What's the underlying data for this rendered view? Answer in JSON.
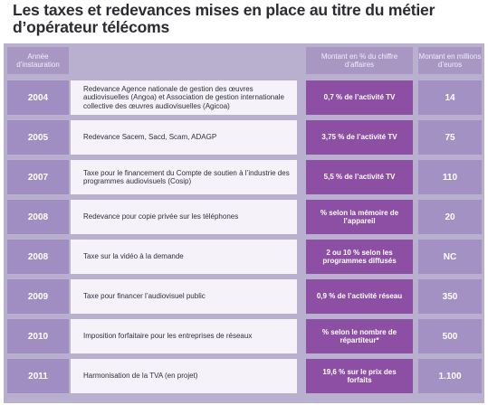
{
  "title": "Les taxes et redevances mises en place au titre du métier d’opérateur télécoms",
  "headers": {
    "year": "Année d’instauration",
    "percent": "Montant en % du chiffre d’affaires",
    "amount": "Montant en millions d’euros"
  },
  "rows": [
    {
      "year": "2004",
      "label": "Redevance Agence nationale de gestion des œuvres audiovisuelles (Angoa) et Association de gestion internationale collective des œuvres audiovisuelles (Agicoa)",
      "percent": "0,7 % de l’activité TV",
      "amount": "14"
    },
    {
      "year": "2005",
      "label": "Redevance Sacem, Sacd, Scam, ADAGP",
      "percent": "3,75 % de l’activité TV",
      "amount": "75"
    },
    {
      "year": "2007",
      "label": "Taxe pour le financement du Compte de soutien à l’industrie des programmes audiovisuels (Cosip)",
      "percent": "5,5 % de l’activité TV",
      "amount": "110"
    },
    {
      "year": "2008",
      "label": "Redevance pour copie privée sur les téléphones",
      "percent": "% selon la mémoire de l’appareil",
      "amount": "20"
    },
    {
      "year": "2008",
      "label": "Taxe sur la vidéo à la demande",
      "percent": "2 ou 10 % selon les programmes diffusés",
      "amount": "NC"
    },
    {
      "year": "2009",
      "label": "Taxe pour financer l’audiovisuel public",
      "percent": "0,9 % de l’activité réseau",
      "amount": "350"
    },
    {
      "year": "2010",
      "label": "Imposition forfaitaire pour les entreprises de réseaux",
      "percent": "% selon le nombre de répartiteur*",
      "amount": "500"
    },
    {
      "year": "2011",
      "label": "Harmonisation de la TVA (en projet)",
      "percent": "19,6 % sur le prix des forfaits",
      "amount": "1.100"
    }
  ]
}
